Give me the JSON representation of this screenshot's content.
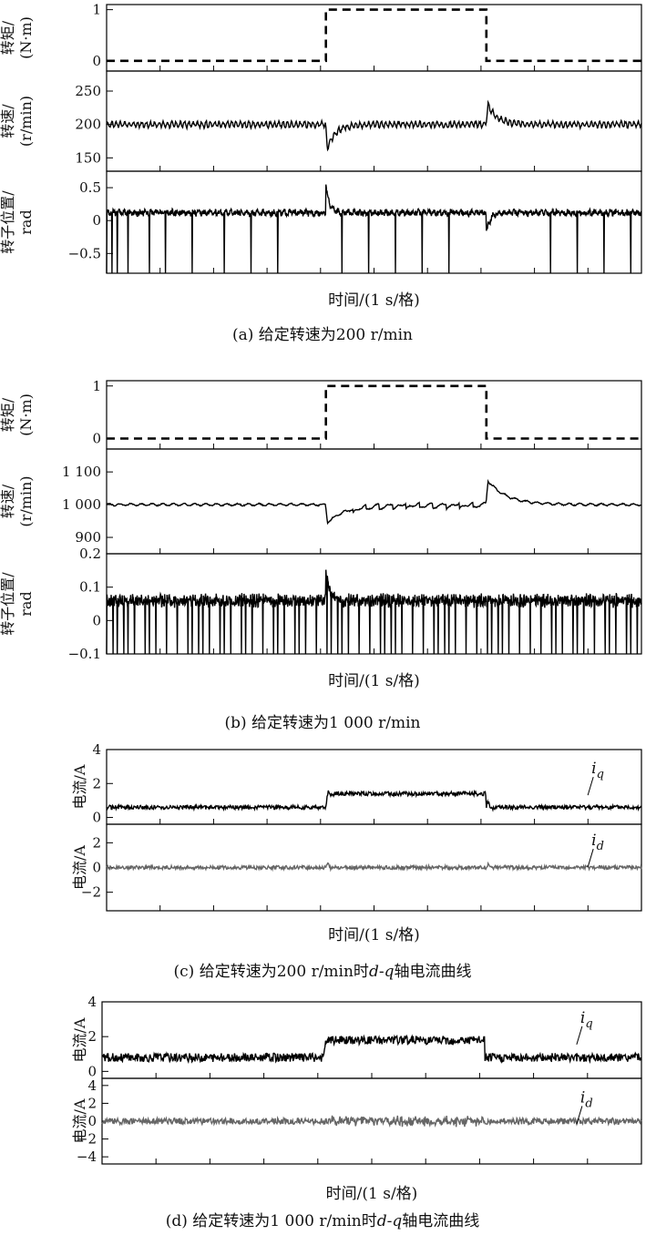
{
  "figure": {
    "panels": [
      {
        "id": "a",
        "caption": "(a) 给定转速为200 r/min",
        "xlabel": "时间/(1 s/格)",
        "x_unit": "s",
        "x_divisions": 10,
        "plots": [
          {
            "ylabel": [
              "转矩/",
              "(N·m)"
            ],
            "ylim": [
              -0.2,
              1.1
            ],
            "yticks": [
              "0",
              "1"
            ],
            "ytick_values": [
              0,
              1
            ],
            "series": [
              {
                "style": "dashed",
                "color": "#000000",
                "signal": "step",
                "low": 0,
                "high": 1,
                "t_on": 4.1,
                "t_off": 7.1
              }
            ]
          },
          {
            "ylabel": [
              "转速/",
              "(r/min)"
            ],
            "ylim": [
              130,
              280
            ],
            "yticks": [
              "150",
              "200",
              "250"
            ],
            "ytick_values": [
              150,
              200,
              250
            ],
            "series": [
              {
                "style": "solid",
                "color": "#000000",
                "signal": "speed",
                "base": 200,
                "ripple": 4,
                "ripple_period": 0.08,
                "dips": [
                  {
                    "t": 4.1,
                    "amp": -45,
                    "tau": 0.15
                  },
                  {
                    "t": 7.1,
                    "amp": 35,
                    "tau": 0.18
                  }
                ]
              }
            ]
          },
          {
            "ylabel": [
              "转子位置/",
              "rad"
            ],
            "ylim": [
              -0.8,
              0.75
            ],
            "yticks": [
              "0.5",
              "0",
              "−0.5"
            ],
            "ytick_values": [
              0.5,
              0,
              -0.5
            ],
            "series": [
              {
                "style": "solid",
                "color": "#000000",
                "signal": "position",
                "base": 0.12,
                "ripple": 0.04,
                "reset_period": 0.1,
                "reset_to": -0.8,
                "spikes": [
                  {
                    "t": 4.1,
                    "amp": 0.4
                  },
                  {
                    "t": 7.1,
                    "amp": -0.3
                  }
                ]
              }
            ]
          }
        ]
      },
      {
        "id": "b",
        "caption": "(b) 给定转速为1 000 r/min",
        "xlabel": "时间/(1 s/格)",
        "x_unit": "s",
        "x_divisions": 10,
        "plots": [
          {
            "ylabel": [
              "转矩/",
              "(N·m)"
            ],
            "ylim": [
              -0.2,
              1.1
            ],
            "yticks": [
              "0",
              "1"
            ],
            "ytick_values": [
              0,
              1
            ],
            "series": [
              {
                "style": "dashed",
                "color": "#000000",
                "signal": "step",
                "low": 0,
                "high": 1,
                "t_on": 4.1,
                "t_off": 7.1
              }
            ]
          },
          {
            "ylabel": [
              "转速/",
              "(r/min)"
            ],
            "ylim": [
              850,
              1170
            ],
            "yticks": [
              "1 100",
              "1 000",
              "900"
            ],
            "ytick_values": [
              1100,
              1000,
              900
            ],
            "series": [
              {
                "style": "solid",
                "color": "#000000",
                "signal": "speed",
                "base": 1000,
                "ripple": 3,
                "ripple_period": 0.2,
                "dips": [
                  {
                    "t": 4.1,
                    "amp": -60,
                    "tau": 0.35
                  },
                  {
                    "t": 7.1,
                    "amp": 80,
                    "tau": 0.35
                  }
                ],
                "sawtooth_during_load": 15
              }
            ]
          },
          {
            "ylabel": [
              "转子位置/",
              "rad"
            ],
            "ylim": [
              -0.1,
              0.2
            ],
            "yticks": [
              "0.2",
              "0.1",
              "0",
              "−0.1"
            ],
            "ytick_values": [
              0.2,
              0.1,
              0,
              -0.1
            ],
            "series": [
              {
                "style": "solid",
                "color": "#000000",
                "signal": "position",
                "base": 0.06,
                "ripple": 0.015,
                "reset_period": 0.04,
                "reset_to": -0.1,
                "spikes": [
                  {
                    "t": 4.1,
                    "amp": 0.09
                  }
                ]
              }
            ]
          }
        ]
      },
      {
        "id": "c",
        "caption_parts": [
          "(c) 给定转速为200 r/min时",
          "d",
          "-",
          "q",
          "轴电流曲线"
        ],
        "xlabel": "时间/(1 s/格)",
        "x_unit": "s",
        "x_divisions": 10,
        "plots": [
          {
            "ylabel": [
              "电流/A"
            ],
            "ylim": [
              -0.4,
              4
            ],
            "yticks": [
              "4",
              "2",
              "0"
            ],
            "ytick_values": [
              4,
              2,
              0
            ],
            "annotation": {
              "symbol": "i",
              "subscript": "q",
              "t": 9.1,
              "value": 2.6
            },
            "series": [
              {
                "style": "solid",
                "color": "#000000",
                "signal": "current",
                "base": 0.6,
                "load_level": 1.4,
                "ripple": 0.12,
                "t_on": 4.1,
                "t_off": 7.1,
                "overshoot": 0.5
              }
            ]
          },
          {
            "ylabel": [
              "电流/A"
            ],
            "ylim": [
              -3.5,
              3.5
            ],
            "yticks": [
              "2",
              "0",
              "−2"
            ],
            "ytick_values": [
              2,
              0,
              -2
            ],
            "annotation": {
              "symbol": "i",
              "subscript": "d",
              "t": 9.1,
              "value": 1.8
            },
            "series": [
              {
                "style": "solid",
                "color": "#666666",
                "signal": "current",
                "base": 0,
                "load_level": 0,
                "ripple": 0.15,
                "t_on": 4.1,
                "t_off": 7.1,
                "overshoot": 0.4
              }
            ]
          }
        ]
      },
      {
        "id": "d",
        "caption_parts": [
          "(d) 给定转速为1 000 r/min时",
          "d",
          "-",
          "q",
          "轴电流曲线"
        ],
        "xlabel": "时间/(1 s/格)",
        "x_unit": "s",
        "x_divisions": 10,
        "plots": [
          {
            "ylabel": [
              "电流/A"
            ],
            "ylim": [
              -0.4,
              4
            ],
            "yticks": [
              "4",
              "2",
              "0"
            ],
            "ytick_values": [
              4,
              2,
              0
            ],
            "annotation": {
              "symbol": "i",
              "subscript": "q",
              "t": 8.9,
              "value": 2.8
            },
            "series": [
              {
                "style": "solid",
                "color": "#000000",
                "signal": "current",
                "base": 0.8,
                "load_level": 1.8,
                "ripple": 0.25,
                "t_on": 4.1,
                "t_off": 7.1,
                "overshoot": 0
              }
            ]
          },
          {
            "ylabel": [
              "电流/A"
            ],
            "ylim": [
              -4.8,
              4.8
            ],
            "yticks": [
              "4",
              "2",
              "0",
              "−2",
              "−4"
            ],
            "ytick_values": [
              4,
              2,
              0,
              -2,
              -4
            ],
            "annotation": {
              "symbol": "i",
              "subscript": "d",
              "t": 8.9,
              "value": 2.1
            },
            "series": [
              {
                "style": "solid",
                "color": "#666666",
                "signal": "current",
                "base": 0,
                "load_level": 0,
                "ripple": 0.35,
                "t_on": 4.1,
                "t_off": 7.1,
                "overshoot": 0,
                "load_ripple": 0.7
              }
            ]
          }
        ]
      }
    ]
  },
  "chart_data": [
    {
      "panel": "a",
      "type": "line",
      "title": "(a) 给定转速为200 r/min",
      "xlabel": "时间/(1 s/格)",
      "series": [
        {
          "name": "转矩/(N·m)",
          "x": [
            0,
            4.1,
            4.1,
            7.1,
            7.1,
            10
          ],
          "values": [
            0,
            0,
            1,
            1,
            0,
            0
          ]
        },
        {
          "name": "转速/(r/min)",
          "x": [
            0,
            4.1,
            4.2,
            5,
            7.1,
            7.2,
            8,
            10
          ],
          "values": [
            200,
            200,
            155,
            200,
            200,
            235,
            200,
            200
          ]
        },
        {
          "name": "转子位置/rad",
          "x": [
            0,
            4.1,
            4.2,
            7.1,
            7.2,
            10
          ],
          "values": [
            0.12,
            0.12,
            0.5,
            0.12,
            -0.15,
            0.12
          ]
        }
      ]
    },
    {
      "panel": "b",
      "type": "line",
      "title": "(b) 给定转速为1 000 r/min",
      "xlabel": "时间/(1 s/格)",
      "series": [
        {
          "name": "转矩/(N·m)",
          "x": [
            0,
            4.1,
            4.1,
            7.1,
            7.1,
            10
          ],
          "values": [
            0,
            0,
            1,
            1,
            0,
            0
          ]
        },
        {
          "name": "转速/(r/min)",
          "x": [
            0,
            4.1,
            4.2,
            5,
            7.1,
            7.2,
            8,
            10
          ],
          "values": [
            1000,
            1000,
            940,
            1000,
            1000,
            1080,
            1000,
            1000
          ]
        },
        {
          "name": "转子位置/rad",
          "x": [
            0,
            4.1,
            10
          ],
          "values": [
            0.06,
            0.15,
            0.06
          ]
        }
      ]
    },
    {
      "panel": "c",
      "type": "line",
      "title": "(c) 给定转速为200 r/min时d-q轴电流曲线",
      "xlabel": "时间/(1 s/格)",
      "series": [
        {
          "name": "iq",
          "x": [
            0,
            4.1,
            4.15,
            7.1,
            7.15,
            10
          ],
          "values": [
            0.6,
            0.6,
            1.9,
            1.4,
            0.5,
            0.6
          ]
        },
        {
          "name": "id",
          "x": [
            0,
            10
          ],
          "values": [
            0,
            0
          ]
        }
      ]
    },
    {
      "panel": "d",
      "type": "line",
      "title": "(d) 给定转速为1 000 r/min时d-q轴电流曲线",
      "xlabel": "时间/(1 s/格)",
      "series": [
        {
          "name": "iq",
          "x": [
            0,
            4.1,
            4.3,
            7.1,
            7.3,
            10
          ],
          "values": [
            0.8,
            0.8,
            1.8,
            1.8,
            0.8,
            0.8
          ]
        },
        {
          "name": "id",
          "x": [
            0,
            10
          ],
          "values": [
            0,
            0
          ]
        }
      ]
    }
  ]
}
